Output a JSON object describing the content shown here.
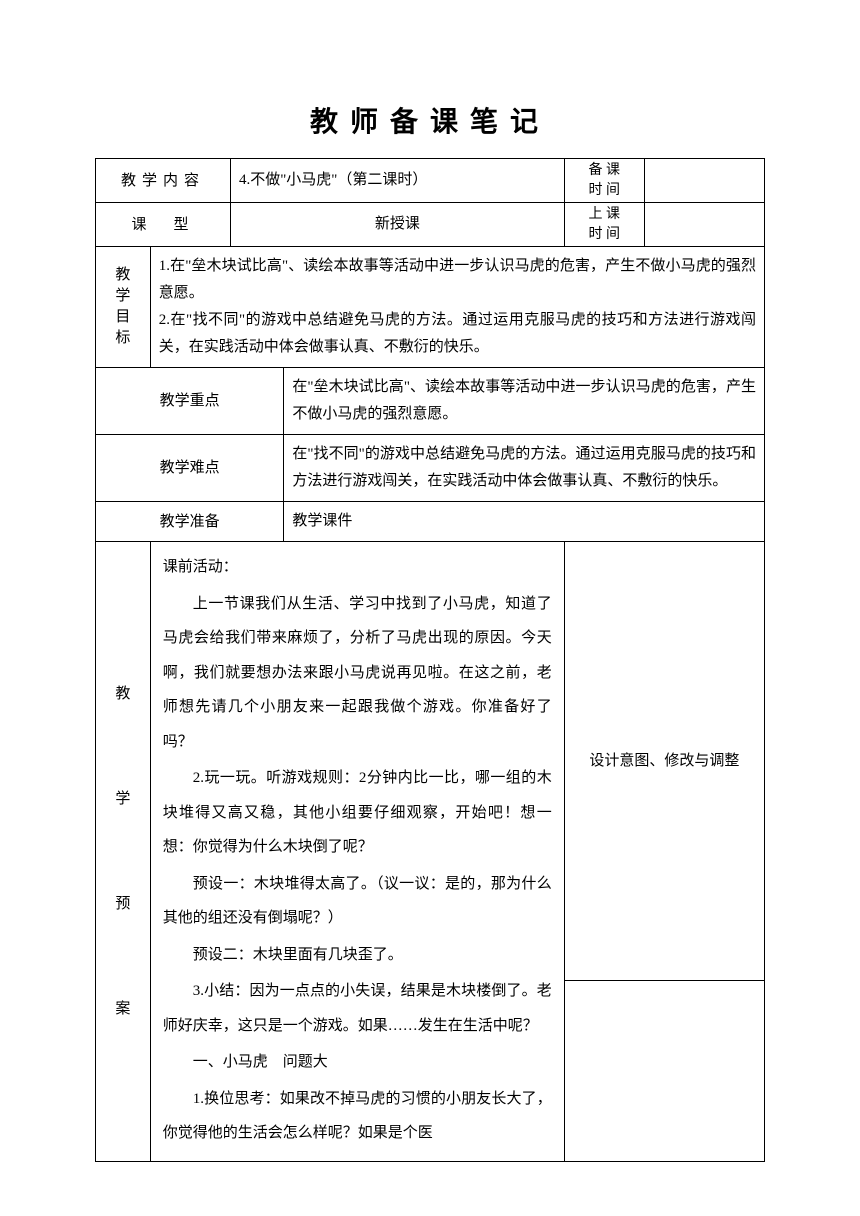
{
  "title": "教师备课笔记",
  "row1": {
    "label": "教学内容",
    "content": "4.不做\"小马虎\"（第二课时）",
    "label2": "备 课\n时 间",
    "value2": ""
  },
  "row2": {
    "label": "课　型",
    "content": "新授课",
    "label2": "上 课\n时 间",
    "value2": ""
  },
  "objectives": {
    "label": "教\n学\n目\n标",
    "content": "1.在\"垒木块试比高\"、读绘本故事等活动中进一步认识马虎的危害，产生不做小马虎的强烈意愿。\n2.在\"找不同\"的游戏中总结避免马虎的方法。通过运用克服马虎的技巧和方法进行游戏闯关，在实践活动中体会做事认真、不敷衍的快乐。"
  },
  "focus": {
    "label": "教学重点",
    "content": "在\"垒木块试比高\"、读绘本故事等活动中进一步认识马虎的危害，产生不做小马虎的强烈意愿。"
  },
  "difficulty": {
    "label": "教学难点",
    "content": "在\"找不同\"的游戏中总结避免马虎的方法。通过运用克服马虎的技巧和方法进行游戏闯关，在实践活动中体会做事认真、不敷衍的快乐。"
  },
  "preparation": {
    "label": "教学准备",
    "content": "教学课件"
  },
  "plan": {
    "label": "教\n\n学\n\n预\n\n案",
    "notesHeader": "设计意图、修改与调整",
    "paragraphs": [
      {
        "text": "课前活动：",
        "indent": false
      },
      {
        "text": "上一节课我们从生活、学习中找到了小马虎，知道了马虎会给我们带来麻烦了，分析了马虎出现的原因。今天啊，我们就要想办法来跟小马虎说再见啦。在这之前，老师想先请几个小朋友来一起跟我做个游戏。你准备好了吗？",
        "indent": true
      },
      {
        "text": "2.玩一玩。听游戏规则：2分钟内比一比，哪一组的木块堆得又高又稳，其他小组要仔细观察，开始吧！想一想：你觉得为什么木块倒了呢？",
        "indent": true
      },
      {
        "text": "预设一：木块堆得太高了。（议一议：是的，那为什么其他的组还没有倒塌呢？）",
        "indent": true
      },
      {
        "text": "预设二：木块里面有几块歪了。",
        "indent": true
      },
      {
        "text": "3.小结：因为一点点的小失误，结果是木块楼倒了。老师好庆幸，这只是一个游戏。如果……发生在生活中呢？",
        "indent": true
      },
      {
        "text": "一、小马虎　问题大",
        "indent": true
      },
      {
        "text": "1.换位思考：如果改不掉马虎的习惯的小朋友长大了，你觉得他的生活会怎么样呢？如果是个医",
        "indent": true
      }
    ]
  }
}
